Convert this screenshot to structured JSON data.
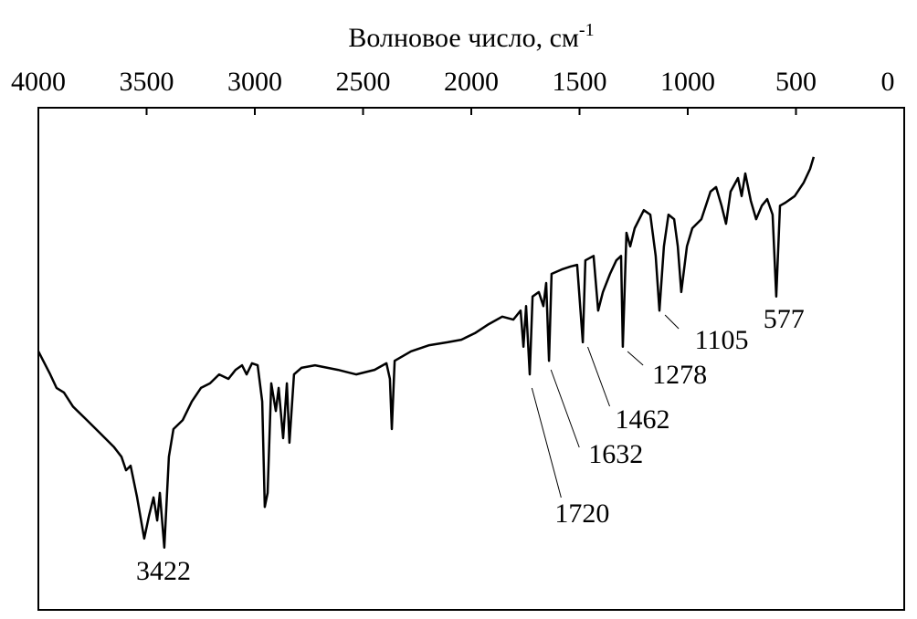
{
  "chart_data": {
    "type": "line",
    "xlabel": {
      "text": "Волновое число, см",
      "superscript": "-1"
    },
    "xlim": [
      4000,
      0
    ],
    "xticks": [
      4000,
      3500,
      3000,
      2500,
      2000,
      1500,
      1000,
      500,
      0
    ],
    "ylim": [
      0,
      100
    ],
    "color": "#000000",
    "x": [
      4000,
      3945,
      3916,
      3882,
      3840,
      3776,
      3713,
      3650,
      3616,
      3595,
      3574,
      3544,
      3511,
      3489,
      3468,
      3451,
      3439,
      3418,
      3397,
      3376,
      3333,
      3291,
      3249,
      3207,
      3165,
      3122,
      3089,
      3059,
      3038,
      3013,
      2987,
      2966,
      2954,
      2941,
      2924,
      2903,
      2890,
      2869,
      2852,
      2840,
      2819,
      2785,
      2722,
      2616,
      2532,
      2447,
      2392,
      2376,
      2367,
      2354,
      2278,
      2194,
      2110,
      2046,
      1983,
      1920,
      1857,
      1806,
      1772,
      1759,
      1747,
      1730,
      1717,
      1688,
      1667,
      1654,
      1641,
      1629,
      1582,
      1540,
      1511,
      1485,
      1473,
      1435,
      1414,
      1392,
      1359,
      1330,
      1308,
      1300,
      1283,
      1266,
      1245,
      1203,
      1173,
      1148,
      1131,
      1110,
      1089,
      1063,
      1046,
      1030,
      1004,
      979,
      937,
      895,
      869,
      844,
      823,
      802,
      768,
      751,
      734,
      709,
      684,
      658,
      633,
      608,
      591,
      574,
      549,
      506,
      464,
      435,
      418
    ],
    "y": [
      51.5,
      46.9,
      44.2,
      43.3,
      40.5,
      37.8,
      35.1,
      32.4,
      30.5,
      27.8,
      28.7,
      22.4,
      14.2,
      18.7,
      22.4,
      17.8,
      23.3,
      12.4,
      30.5,
      36.0,
      37.8,
      41.5,
      44.2,
      45.1,
      46.9,
      46.0,
      47.8,
      48.7,
      46.9,
      49.1,
      48.7,
      41.5,
      20.5,
      23.3,
      45.1,
      39.6,
      44.2,
      34.2,
      45.1,
      33.3,
      46.9,
      48.2,
      48.7,
      47.8,
      46.9,
      47.8,
      49.1,
      46.0,
      36.0,
      49.6,
      51.5,
      52.7,
      53.3,
      53.8,
      55.1,
      56.9,
      58.4,
      57.8,
      59.6,
      52.4,
      60.5,
      46.9,
      62.4,
      63.3,
      60.5,
      65.1,
      49.6,
      66.9,
      67.8,
      68.4,
      68.7,
      53.3,
      69.6,
      70.5,
      59.6,
      63.3,
      66.9,
      69.6,
      70.5,
      52.4,
      75.1,
      72.4,
      76.0,
      79.6,
      78.7,
      70.5,
      59.6,
      72.4,
      78.7,
      77.8,
      72.4,
      63.3,
      72.4,
      76.0,
      77.8,
      83.3,
      84.2,
      80.5,
      76.9,
      83.3,
      86.0,
      82.4,
      86.9,
      81.5,
      77.8,
      80.5,
      81.8,
      78.7,
      62.4,
      80.5,
      81.1,
      82.4,
      85.1,
      87.8,
      90.2
    ],
    "annotations": [
      3422,
      1720,
      1632,
      1462,
      1278,
      1105,
      577
    ]
  }
}
